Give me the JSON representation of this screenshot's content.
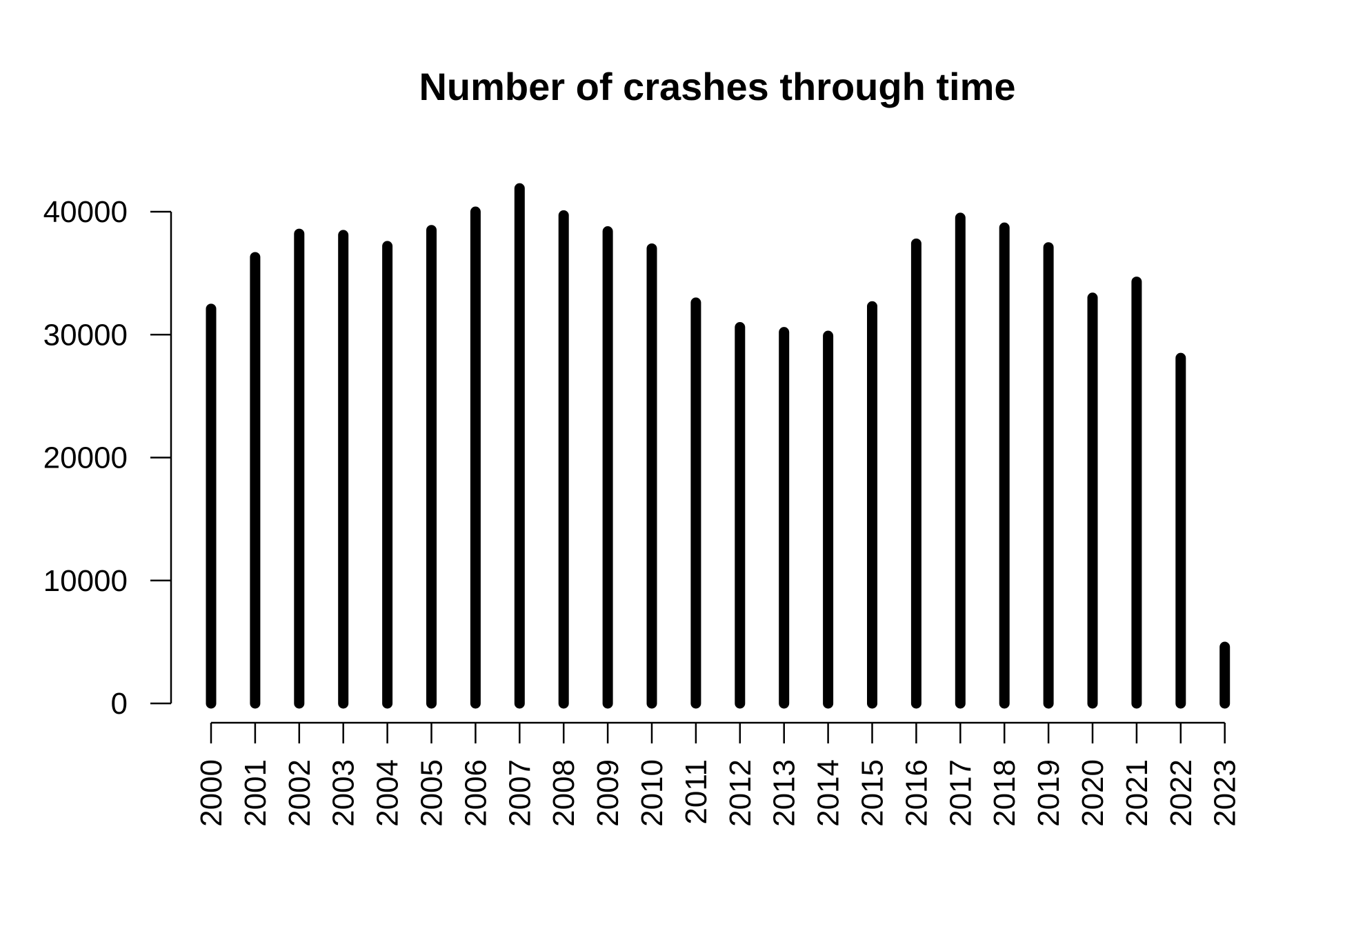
{
  "chart_data": {
    "type": "bar",
    "title": "Number of crashes through time",
    "xlabel": "",
    "ylabel": "",
    "categories": [
      "2000",
      "2001",
      "2002",
      "2003",
      "2004",
      "2005",
      "2006",
      "2007",
      "2008",
      "2009",
      "2010",
      "2011",
      "2012",
      "2013",
      "2014",
      "2015",
      "2016",
      "2017",
      "2018",
      "2019",
      "2020",
      "2021",
      "2022",
      "2023"
    ],
    "values": [
      32100,
      36300,
      38200,
      38100,
      37200,
      38500,
      40000,
      41900,
      39700,
      38400,
      37000,
      32600,
      30600,
      30200,
      29900,
      32300,
      37400,
      39500,
      38700,
      37100,
      33000,
      34300,
      28100,
      4600
    ],
    "yticks": [
      0,
      10000,
      20000,
      30000,
      40000
    ],
    "ylim": [
      0,
      40000
    ],
    "grid": false,
    "legend": "none",
    "bar_color": "#000000"
  }
}
